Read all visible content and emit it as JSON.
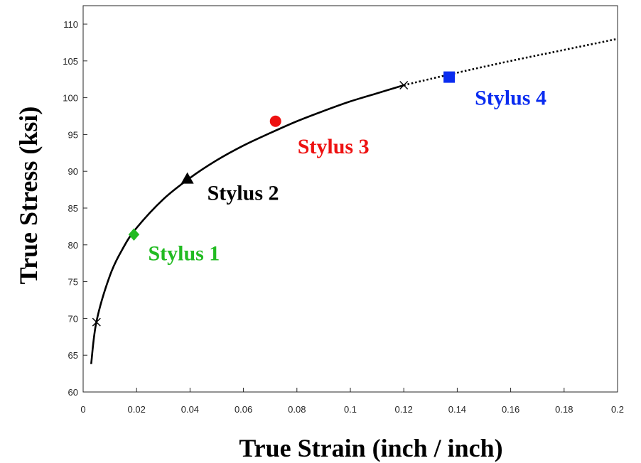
{
  "chart_data": {
    "type": "line",
    "xlabel": "True Strain (inch / inch)",
    "ylabel": "True Stress (ksi)",
    "xlim": [
      0,
      0.2
    ],
    "ylim": [
      60,
      112
    ],
    "x_ticks": [
      0,
      0.02,
      0.04,
      0.06,
      0.08,
      0.1,
      0.12,
      0.14,
      0.16,
      0.18,
      0.2
    ],
    "x_tick_labels": [
      "0",
      "0.02",
      "0.04",
      "0.06",
      "0.08",
      "0.1",
      "0.12",
      "0.14",
      "0.16",
      "0.18",
      "0.2"
    ],
    "y_ticks": [
      60,
      65,
      70,
      75,
      80,
      85,
      90,
      95,
      100,
      105,
      110
    ],
    "y_tick_labels": [
      "60",
      "65",
      "70",
      "75",
      "80",
      "85",
      "90",
      "95",
      "100",
      "105",
      "110"
    ],
    "grid": false,
    "curve": {
      "x": [
        0.003,
        0.005,
        0.01,
        0.015,
        0.02,
        0.03,
        0.04,
        0.05,
        0.06,
        0.07,
        0.08,
        0.09,
        0.1,
        0.11,
        0.12
      ],
      "y": [
        63.8,
        69.6,
        75.8,
        79.6,
        82.3,
        86.2,
        89.1,
        91.5,
        93.5,
        95.2,
        96.8,
        98.2,
        99.5,
        100.6,
        101.7
      ],
      "color": "#000000",
      "style": "solid"
    },
    "extrapolation": {
      "x": [
        0.12,
        0.14,
        0.16,
        0.18,
        0.2
      ],
      "y": [
        101.7,
        103.4,
        105.0,
        106.5,
        108.0
      ],
      "color": "#000000",
      "style": "dotted"
    },
    "endpoints": [
      {
        "x": 0.005,
        "y": 69.5,
        "marker": "x"
      },
      {
        "x": 0.12,
        "y": 101.7,
        "marker": "x"
      }
    ],
    "points": [
      {
        "label": "Stylus 1",
        "x": 0.019,
        "y": 81.4,
        "marker": "diamond",
        "color": "#22bb22"
      },
      {
        "label": "Stylus 2",
        "x": 0.039,
        "y": 88.9,
        "marker": "triangle",
        "color": "#000000"
      },
      {
        "label": "Stylus 3",
        "x": 0.072,
        "y": 96.8,
        "marker": "circle",
        "color": "#ee1111"
      },
      {
        "label": "Stylus 4",
        "x": 0.137,
        "y": 102.8,
        "marker": "square",
        "color": "#0a2cf0"
      }
    ]
  }
}
